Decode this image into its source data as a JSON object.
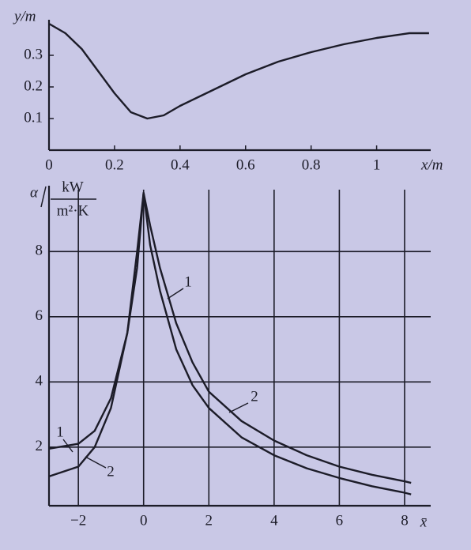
{
  "chart_data": [
    {
      "type": "line",
      "x_label": "x/m",
      "y_label": "y/m",
      "xlim": [
        0,
        1.165
      ],
      "ylim": [
        0,
        0.4
      ],
      "xticks": [
        0,
        0.2,
        0.4,
        0.6,
        0.8,
        1.0
      ],
      "yticks": [
        0.1,
        0.2,
        0.3
      ],
      "grid": false,
      "series": [
        {
          "color": "#1c1c28",
          "x": [
            0,
            0.05,
            0.1,
            0.15,
            0.2,
            0.25,
            0.3,
            0.35,
            0.4,
            0.5,
            0.6,
            0.7,
            0.8,
            0.9,
            1.0,
            1.1,
            1.16
          ],
          "values": [
            0.4,
            0.37,
            0.32,
            0.25,
            0.18,
            0.12,
            0.1,
            0.11,
            0.14,
            0.19,
            0.24,
            0.28,
            0.31,
            0.335,
            0.355,
            0.37,
            0.37
          ]
        }
      ]
    },
    {
      "type": "line",
      "x_label": "x̄",
      "y_label": {
        "symbol": "α",
        "unit_numerator": "kW",
        "unit_denominator": "m²·K"
      },
      "xlim": [
        -2.9,
        8.8
      ],
      "ylim": [
        0.2,
        9.9
      ],
      "xticks": [
        {
          "value": -2,
          "label": "−2"
        },
        0,
        2,
        4,
        6,
        8
      ],
      "yticks": [
        2,
        4,
        6,
        8
      ],
      "grid": true,
      "series": [
        {
          "name": "1",
          "color": "#1c1c28",
          "x": [
            -2.9,
            -2,
            -1.5,
            -1,
            -0.5,
            -0.2,
            0,
            0.2,
            0.5,
            1,
            1.5,
            2,
            3,
            4,
            5,
            6,
            7,
            8,
            8.2
          ],
          "values": [
            1.95,
            2.1,
            2.5,
            3.5,
            5.5,
            7.5,
            9.8,
            8.8,
            7.5,
            5.8,
            4.6,
            3.7,
            2.8,
            2.2,
            1.75,
            1.4,
            1.15,
            0.95,
            0.9
          ]
        },
        {
          "name": "2",
          "color": "#1c1c28",
          "x": [
            -2.9,
            -2,
            -1.5,
            -1,
            -0.5,
            -0.2,
            0,
            0.2,
            0.5,
            1,
            1.5,
            2,
            3,
            4,
            5,
            6,
            7,
            8,
            8.2
          ],
          "values": [
            1.1,
            1.4,
            2.0,
            3.2,
            5.5,
            8.0,
            9.8,
            8.2,
            6.8,
            5.0,
            3.9,
            3.2,
            2.3,
            1.75,
            1.35,
            1.05,
            0.8,
            0.6,
            0.55
          ]
        }
      ]
    }
  ]
}
